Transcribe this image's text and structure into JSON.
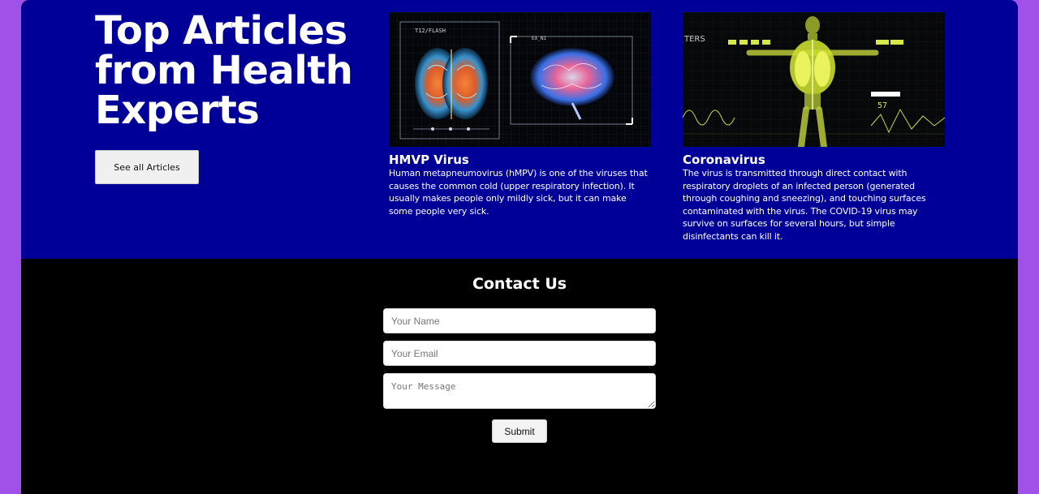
{
  "hero": {
    "title": "Top Articles from Health Experts",
    "button_label": "See all Articles"
  },
  "articles": [
    {
      "title": "HMVP Virus",
      "text": "Human metapneumovirus (hMPV) is one of the viruses that causes the common cold (upper respiratory infection). It usually makes people only mildly sick, but it can make some people very sick.",
      "image_overlay": {
        "label_left": "T12/FLASH",
        "label_right": "EX_NI"
      }
    },
    {
      "title": "Coronavirus",
      "text": "The virus is transmitted through direct contact with respiratory droplets of an infected person (generated through coughing and sneezing), and touching surfaces contaminated with the virus. The COVID-19 virus may survive on surfaces for several hours, but simple disinfectants can kill it.",
      "image_overlay": {
        "readout": "57",
        "corner_text": "TERS"
      }
    }
  ],
  "contact": {
    "title": "Contact Us",
    "name_placeholder": "Your Name",
    "email_placeholder": "Your Email",
    "message_placeholder": "Your Message",
    "submit_label": "Submit"
  },
  "colors": {
    "page_background": "#a052e8",
    "articles_background": "#000099",
    "contact_background": "#000000",
    "text": "#ffffff"
  }
}
